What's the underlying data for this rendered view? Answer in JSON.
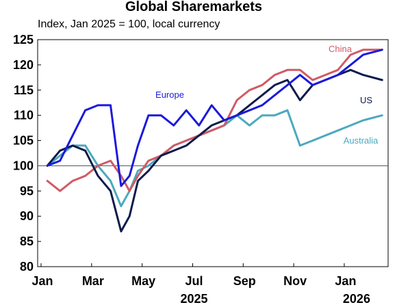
{
  "chart_data": {
    "type": "line",
    "title": "Global Sharemarkets",
    "subtitle": "Index, Jan 2025 = 100, local currency",
    "ylim": [
      80,
      125
    ],
    "yticks": [
      80,
      85,
      90,
      95,
      100,
      105,
      110,
      115,
      120,
      125
    ],
    "xticks": [
      "Jan",
      "Mar",
      "May",
      "Jul",
      "Sep",
      "Nov",
      "Jan"
    ],
    "year_labels": [
      "2025",
      "2026"
    ],
    "reference_line": 100,
    "grid": false,
    "x": [
      "2025-01",
      "2025-01",
      "2025-02",
      "2025-02",
      "2025-03",
      "2025-03",
      "2025-04",
      "2025-04",
      "2025-04",
      "2025-05",
      "2025-05",
      "2025-06",
      "2025-06",
      "2025-07",
      "2025-07",
      "2025-08",
      "2025-08",
      "2025-09",
      "2025-09",
      "2025-10",
      "2025-10",
      "2025-11",
      "2025-11",
      "2025-12",
      "2025-12",
      "2026-01",
      "2026-01",
      "2026-02"
    ],
    "series": [
      {
        "name": "Europe",
        "color": "#1a1adc",
        "values": [
          100,
          101,
          106,
          111,
          112,
          112,
          96,
          98,
          104,
          110,
          110,
          108,
          111,
          108,
          112,
          109,
          110,
          111,
          112,
          114,
          116,
          118,
          116,
          117,
          118,
          120,
          122,
          123
        ]
      },
      {
        "name": "China",
        "color": "#d05a65",
        "values": [
          97,
          95,
          97,
          98,
          100,
          101,
          98,
          95,
          98,
          101,
          102,
          104,
          105,
          106,
          107,
          108,
          113,
          115,
          116,
          118,
          119,
          119,
          117,
          118,
          119,
          122,
          123,
          123
        ]
      },
      {
        "name": "US",
        "color": "#0d1b4b",
        "values": [
          100,
          103,
          104,
          103,
          98,
          95,
          87,
          90,
          97,
          99,
          102,
          103,
          104,
          106,
          108,
          109,
          110,
          112,
          114,
          116,
          117,
          113,
          116,
          117,
          118,
          119,
          118,
          117
        ]
      },
      {
        "name": "Australia",
        "color": "#4ba9be",
        "values": [
          100,
          102,
          104,
          104,
          100,
          97,
          92,
          95,
          99,
          100,
          102,
          104,
          105,
          106,
          107,
          108,
          110,
          108,
          110,
          110,
          111,
          104,
          105,
          106,
          107,
          108,
          109,
          110
        ]
      }
    ]
  }
}
